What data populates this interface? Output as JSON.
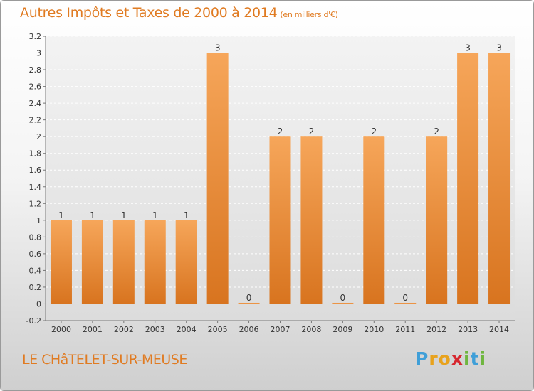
{
  "header": {
    "title": "Autres Impôts et Taxes de 2000 à 2014",
    "subtitle": "(en milliers d'€)"
  },
  "footer": {
    "town": "LE CHâTELET-SUR-MEUSE",
    "logo_letters": [
      "P",
      "r",
      "o",
      "x",
      "i",
      "t",
      "i"
    ],
    "logo_colors": [
      "#3f9fd8",
      "#e8a21c",
      "#e8a21c",
      "#d6272f",
      "#6fb63f",
      "#3f9fd8",
      "#6fb63f"
    ]
  },
  "colors": {
    "accent": "#e07b22",
    "bar_top": "#f6a65a",
    "bar_bottom": "#d8741f"
  },
  "chart_data": {
    "type": "bar",
    "categories": [
      "2000",
      "2001",
      "2002",
      "2003",
      "2004",
      "2005",
      "2006",
      "2007",
      "2008",
      "2009",
      "2010",
      "2011",
      "2012",
      "2013",
      "2014"
    ],
    "values": [
      1,
      1,
      1,
      1,
      1,
      3,
      0,
      2,
      2,
      0,
      2,
      0,
      2,
      3,
      3
    ],
    "data_labels": [
      "1",
      "1",
      "1",
      "1",
      "1",
      "3",
      "0",
      "2",
      "2",
      "0",
      "2",
      "0",
      "2",
      "3",
      "3"
    ],
    "ylim": [
      -0.2,
      3.2
    ],
    "yticks": [
      -0.2,
      0,
      0.2,
      0.4,
      0.6,
      0.8,
      1,
      1.2,
      1.4,
      1.6,
      1.8,
      2,
      2.2,
      2.4,
      2.6,
      2.8,
      3,
      3.2
    ],
    "ytick_labels": [
      "-0.2",
      "0",
      "0.2",
      "0.4",
      "0.6",
      "0.8",
      "1",
      "1.2",
      "1.4",
      "1.6",
      "1.8",
      "2",
      "2.2",
      "2.4",
      "2.6",
      "2.8",
      "3",
      "3.2"
    ],
    "grid": true
  }
}
